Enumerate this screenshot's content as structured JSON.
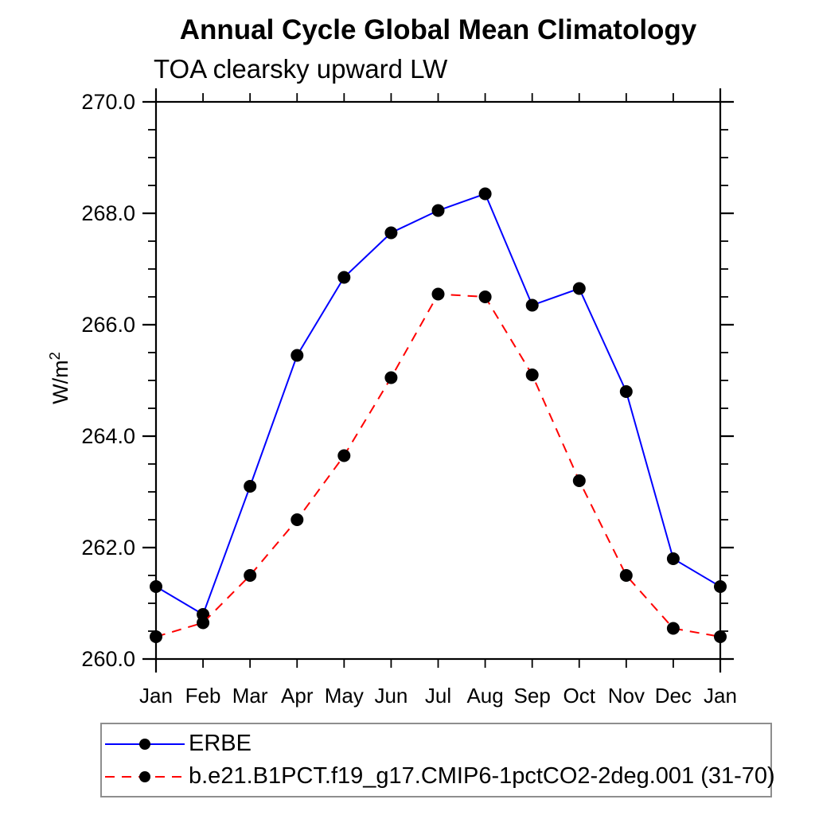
{
  "header": {
    "title": "Annual Cycle Global Mean Climatology",
    "subtitle": "TOA clearsky upward LW"
  },
  "ylabel": {
    "base": "W/m",
    "exp": "2"
  },
  "chart_data": {
    "type": "line",
    "title": "Annual Cycle Global Mean Climatology",
    "subtitle": "TOA clearsky upward LW",
    "ylabel": "W/m²",
    "x_categories": [
      "Jan",
      "Feb",
      "Mar",
      "Apr",
      "May",
      "Jun",
      "Jul",
      "Aug",
      "Sep",
      "Oct",
      "Nov",
      "Dec",
      "Jan"
    ],
    "series": [
      {
        "name": "ERBE",
        "color": "#0000ff",
        "line_style": "solid",
        "marker": "filled-circle",
        "marker_color": "#000000",
        "values": [
          261.3,
          260.8,
          263.1,
          265.45,
          266.85,
          267.65,
          268.05,
          268.35,
          266.35,
          266.65,
          264.8,
          261.8,
          261.3
        ]
      },
      {
        "name": "b.e21.B1PCT.f19_g17.CMIP6-1pctCO2-2deg.001 (31-70)",
        "color": "#ff0000",
        "line_style": "dashed",
        "marker": "filled-circle",
        "marker_color": "#000000",
        "values": [
          260.4,
          260.65,
          261.5,
          262.5,
          263.65,
          265.05,
          266.55,
          266.5,
          265.1,
          263.2,
          261.5,
          260.55,
          260.4
        ]
      }
    ],
    "ylim": [
      260.0,
      270.0
    ],
    "ytick_labels": [
      "260.0",
      "262.0",
      "264.0",
      "266.0",
      "268.0",
      "270.0"
    ],
    "ytick_major_step": 2.0,
    "ytick_minor_step": 0.5,
    "grid": false,
    "frame": "box-with-outward-ticks",
    "legend_position": "bottom"
  }
}
